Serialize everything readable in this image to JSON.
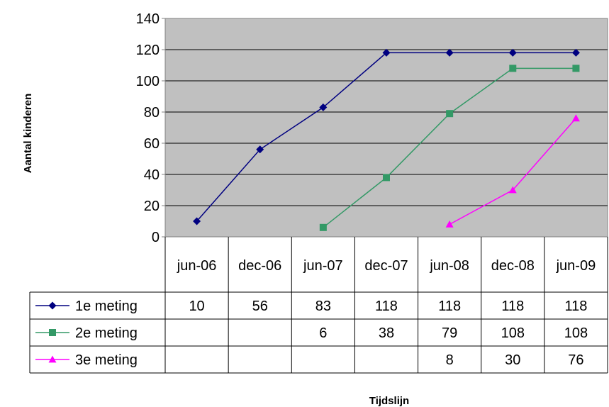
{
  "chart_data": {
    "type": "line",
    "title": "",
    "xlabel": "Tijdslijn",
    "ylabel": "Aantal kinderen",
    "ylim": [
      0,
      140
    ],
    "yticks": [
      "0",
      "20",
      "40",
      "60",
      "80",
      "100",
      "120",
      "140"
    ],
    "grid": true,
    "legend": "data-table",
    "categories": [
      "jun-06",
      "dec-06",
      "jun-07",
      "dec-07",
      "jun-08",
      "dec-08",
      "jun-09"
    ],
    "series": [
      {
        "name": "1e meting",
        "color": "#000080",
        "marker": "diamond",
        "values": [
          10,
          56,
          83,
          118,
          118,
          118,
          118
        ]
      },
      {
        "name": "2e meting",
        "color": "#339966",
        "marker": "square",
        "values": [
          null,
          null,
          6,
          38,
          79,
          108,
          108
        ]
      },
      {
        "name": "3e meting",
        "color": "#ff00ff",
        "marker": "triangle",
        "values": [
          null,
          null,
          null,
          null,
          8,
          30,
          76
        ]
      }
    ]
  }
}
